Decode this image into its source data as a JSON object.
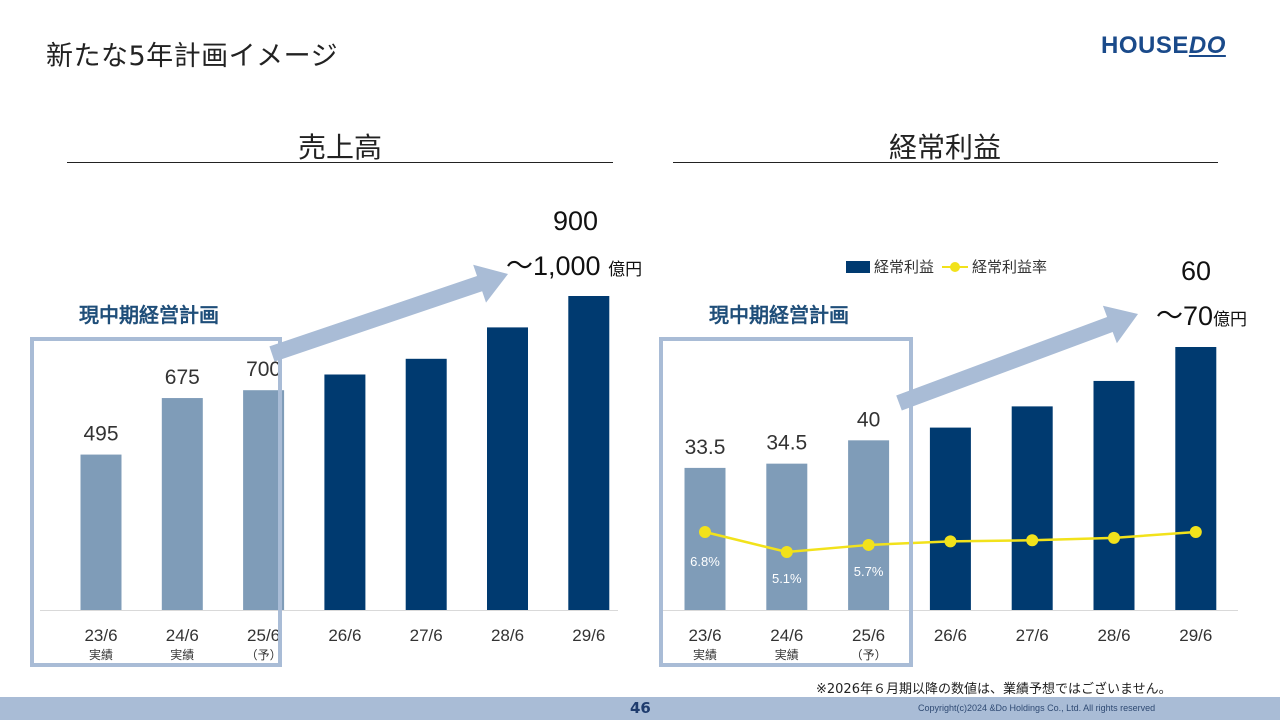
{
  "header": {
    "title": "新たな5年計画イメージ",
    "logo_text_house": "HOUSE",
    "logo_text_do": "DO"
  },
  "colors": {
    "actual_bar": "#7f9cb8",
    "plan_bar": "#003a70",
    "ratio_line": "#f2e21b",
    "plan_box": "#a9bcd6",
    "arrow": "#a9bcd6"
  },
  "sales_section": {
    "title": "売上高",
    "plan_label": "現中期経営計画",
    "target_top": "900",
    "target_bottom": "～1,000",
    "unit": "億円"
  },
  "profit_section": {
    "title": "経常利益",
    "plan_label": "現中期経営計画",
    "target_top": "60",
    "target_bottom": "～70",
    "unit": "億円",
    "legend_bar": "経常利益",
    "legend_line": "経常利益率"
  },
  "chart_data": [
    {
      "type": "bar",
      "title": "売上高",
      "categories": [
        "23/6",
        "24/6",
        "25/6",
        "26/6",
        "27/6",
        "28/6",
        "29/6"
      ],
      "category_sublabels": [
        "実績",
        "実績",
        "（予）",
        "",
        "",
        "",
        ""
      ],
      "series": [
        {
          "name": "売上高",
          "values": [
            495,
            675,
            700,
            750,
            800,
            900,
            1000
          ]
        }
      ],
      "data_labels": [
        "495",
        "675",
        "700",
        "",
        "",
        "",
        ""
      ],
      "ylim": [
        0,
        1000
      ],
      "unit": "億円",
      "grid": false
    },
    {
      "type": "bar+line",
      "title": "経常利益",
      "categories": [
        "23/6",
        "24/6",
        "25/6",
        "26/6",
        "27/6",
        "28/6",
        "29/6"
      ],
      "category_sublabels": [
        "実績",
        "実績",
        "（予）",
        "",
        "",
        "",
        ""
      ],
      "series": [
        {
          "name": "経常利益",
          "type": "bar",
          "values": [
            33.5,
            34.5,
            40,
            43,
            48,
            54,
            62
          ]
        },
        {
          "name": "経常利益率",
          "type": "line",
          "values": [
            6.8,
            5.1,
            5.7,
            6.0,
            6.1,
            6.3,
            6.8
          ]
        }
      ],
      "data_labels": [
        "33.5",
        "34.5",
        "40",
        "",
        "",
        "",
        ""
      ],
      "line_labels": [
        "6.8%",
        "5.1%",
        "5.7%",
        "",
        "",
        "",
        ""
      ],
      "ylim": [
        0,
        62
      ],
      "legend": "top",
      "unit": "億円",
      "grid": false
    }
  ],
  "footer": {
    "note": "※2026年６月期以降の数値は、業績予想ではございません。",
    "page_number": "46",
    "copyright": "Copyright(c)2024 &Do Holdings Co., Ltd. All rights reserved"
  }
}
